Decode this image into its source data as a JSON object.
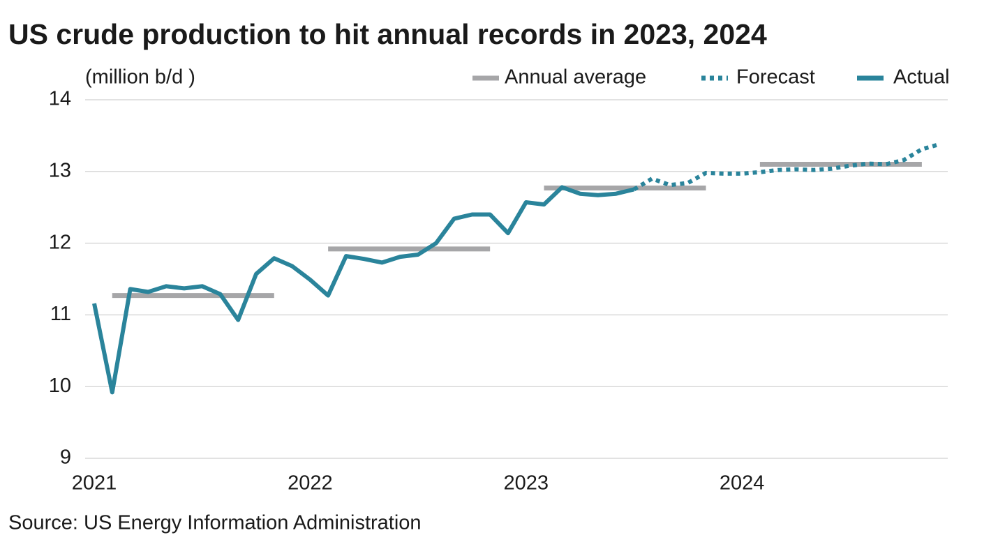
{
  "chart_data": {
    "type": "line",
    "title": "US crude production to hit annual records in 2023, 2024",
    "y_label": "(million b/d )",
    "source": "Source: US Energy Information Administration",
    "categories": [
      "2021",
      null,
      null,
      null,
      null,
      null,
      null,
      null,
      null,
      null,
      null,
      null,
      "2022",
      null,
      null,
      null,
      null,
      null,
      null,
      null,
      null,
      null,
      null,
      null,
      "2023",
      null,
      null,
      null,
      null,
      null,
      null,
      null,
      null,
      null,
      null,
      null,
      "2024",
      null,
      null,
      null,
      null,
      null,
      null,
      null,
      null,
      null,
      null,
      null
    ],
    "series": [
      {
        "name": "Actual",
        "color": "#2a849b",
        "dashed": false,
        "values": [
          11.16,
          9.92,
          11.36,
          11.32,
          11.4,
          11.37,
          11.4,
          11.29,
          10.93,
          11.57,
          11.79,
          11.68,
          11.49,
          11.27,
          11.82,
          11.78,
          11.73,
          11.81,
          11.84,
          12.0,
          12.34,
          12.4,
          12.4,
          12.14,
          12.57,
          12.54,
          12.78,
          12.69,
          12.67,
          12.69,
          12.75,
          null,
          null,
          null,
          null,
          null,
          null,
          null,
          null,
          null,
          null,
          null,
          null,
          null,
          null,
          null,
          null,
          null
        ]
      },
      {
        "name": "Forecast",
        "color": "#2a849b",
        "dashed": true,
        "values": [
          null,
          null,
          null,
          null,
          null,
          null,
          null,
          null,
          null,
          null,
          null,
          null,
          null,
          null,
          null,
          null,
          null,
          null,
          null,
          null,
          null,
          null,
          null,
          null,
          null,
          null,
          null,
          null,
          null,
          null,
          12.75,
          12.9,
          12.81,
          12.84,
          12.98,
          12.97,
          12.97,
          12.99,
          13.02,
          13.03,
          13.02,
          13.04,
          13.08,
          13.11,
          13.1,
          13.16,
          13.31,
          13.38
        ]
      }
    ],
    "averages": {
      "name": "Annual average",
      "color": "#a6a6a8",
      "values": [
        11.27,
        11.92,
        12.77,
        13.1
      ]
    },
    "ylim": [
      9,
      14
    ],
    "yticks": [
      9,
      10,
      11,
      12,
      13,
      14
    ],
    "grid": true
  }
}
